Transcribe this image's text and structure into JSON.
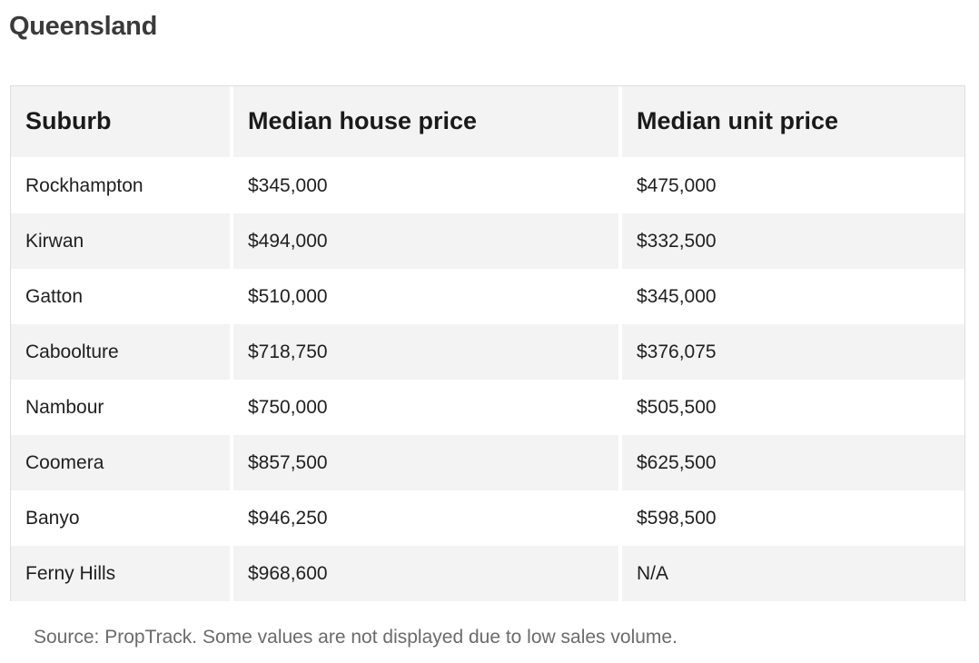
{
  "title": "Queensland",
  "table": {
    "headers": [
      "Suburb",
      "Median house price",
      "Median unit price"
    ],
    "rows": [
      [
        "Rockhampton",
        "$345,000",
        "$475,000"
      ],
      [
        "Kirwan",
        "$494,000",
        "$332,500"
      ],
      [
        "Gatton",
        "$510,000",
        "$345,000"
      ],
      [
        "Caboolture",
        "$718,750",
        "$376,075"
      ],
      [
        "Nambour",
        "$750,000",
        "$505,500"
      ],
      [
        "Coomera",
        "$857,500",
        "$625,500"
      ],
      [
        "Banyo",
        "$946,250",
        "$598,500"
      ],
      [
        "Ferny Hills",
        "$968,600",
        "N/A"
      ]
    ]
  },
  "source": "Source: PropTrack. Some values are not displayed due to low sales volume."
}
